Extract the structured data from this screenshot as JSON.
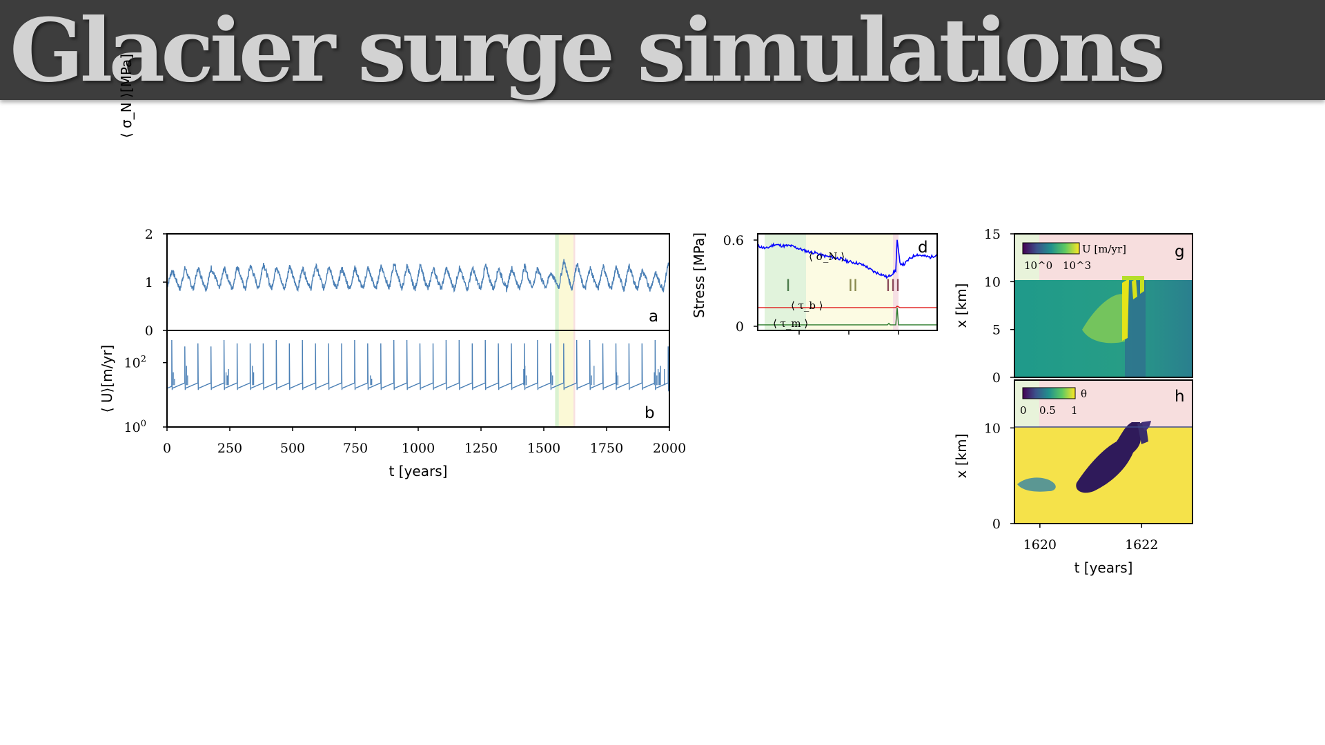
{
  "title": "Glacier surge simulations",
  "chart_data": [
    {
      "panel": "a",
      "type": "line",
      "ylabel": "⟨ σ_N ⟩[MPa]",
      "xlim": [
        0,
        2000
      ],
      "ylim": [
        0,
        2
      ],
      "yticks": [
        "0",
        "1",
        "2"
      ],
      "series_color": "#4a7fb5",
      "cycle_period_years": 52,
      "x": [
        0,
        20,
        40,
        52,
        72,
        92,
        104,
        124,
        144,
        156,
        176,
        196,
        208,
        228,
        248,
        260,
        280,
        300,
        312,
        332,
        352,
        364,
        384,
        404,
        416,
        436,
        456,
        468,
        488,
        508,
        520,
        540,
        560,
        572,
        592,
        612,
        624,
        644,
        664,
        676,
        696,
        716,
        728,
        748,
        768,
        780,
        800,
        820,
        832,
        852,
        872,
        884,
        904,
        924,
        936,
        956,
        976,
        988,
        1008,
        1028,
        1040,
        1060,
        1080,
        1092,
        1112,
        1132,
        1144,
        1164,
        1184,
        1196,
        1216,
        1236,
        1248,
        1268,
        1288,
        1300,
        1320,
        1340,
        1352,
        1372,
        1392,
        1404,
        1424,
        1444,
        1456,
        1476,
        1496,
        1508,
        1528,
        1548,
        1560,
        1580,
        1600,
        1612,
        1632,
        1652,
        1664,
        1684,
        1704,
        1716,
        1736,
        1756,
        1768,
        1788,
        1808,
        1820,
        1840,
        1860,
        1872,
        1892,
        1912,
        1924,
        1944,
        1964,
        1976,
        1996,
        2000
      ],
      "values": [
        0.9,
        1.25,
        1.0,
        0.85,
        1.3,
        1.0,
        0.85,
        1.3,
        1.0,
        0.85,
        1.3,
        1.05,
        0.85,
        1.3,
        1.0,
        0.85,
        1.35,
        1.0,
        0.85,
        1.35,
        1.05,
        0.85,
        1.4,
        1.05,
        0.85,
        1.35,
        1.0,
        0.85,
        1.35,
        1.0,
        0.85,
        1.3,
        1.0,
        0.85,
        1.35,
        1.05,
        0.85,
        1.35,
        1.0,
        0.85,
        1.3,
        1.0,
        0.85,
        1.3,
        1.0,
        0.85,
        1.3,
        1.0,
        0.85,
        1.35,
        1.05,
        0.85,
        1.4,
        1.05,
        0.85,
        1.35,
        1.0,
        0.85,
        1.35,
        1.0,
        0.85,
        1.3,
        1.0,
        0.85,
        1.3,
        1.0,
        0.85,
        1.3,
        1.0,
        0.85,
        1.3,
        1.0,
        0.85,
        1.35,
        1.0,
        0.85,
        1.3,
        1.0,
        0.85,
        1.3,
        1.0,
        0.85,
        1.35,
        1.0,
        0.9,
        1.3,
        1.0,
        0.9,
        1.2,
        1.0,
        0.9,
        1.45,
        1.05,
        0.85,
        1.4,
        1.0,
        0.85,
        1.3,
        1.0,
        0.85,
        1.35,
        1.0,
        0.85,
        1.3,
        1.0,
        0.85,
        1.35,
        1.0,
        0.85,
        1.25,
        1.0,
        0.85,
        1.2,
        0.95,
        0.85,
        1.4,
        1.35
      ],
      "shaded_regions": [
        {
          "x": [
            1545,
            1560
          ],
          "color": "#d9f2d0"
        },
        {
          "x": [
            1560,
            1618
          ],
          "color": "#fbf9d6"
        },
        {
          "x": [
            1618,
            1625
          ],
          "color": "#f8e0e0"
        }
      ]
    },
    {
      "panel": "b",
      "type": "line",
      "yscale": "log",
      "xlabel": "t [years]",
      "ylabel": "⟨ U⟩[m/yr]",
      "xlim": [
        0,
        2000
      ],
      "ylim_log10": [
        0,
        3
      ],
      "yticks": [
        "10^0",
        "10^2"
      ],
      "xticks": [
        "0",
        "250",
        "500",
        "750",
        "1000",
        "1250",
        "1500",
        "1750",
        "2000"
      ],
      "series_color": "#4a7fb5",
      "baseline_log10": 1.2,
      "quiescent_rise_log10": 0.35,
      "surge_times": [
        19,
        71,
        123,
        175,
        227,
        279,
        331,
        383,
        435,
        487,
        539,
        591,
        643,
        695,
        747,
        799,
        851,
        903,
        955,
        1007,
        1059,
        1111,
        1163,
        1215,
        1267,
        1319,
        1371,
        1423,
        1475,
        1527,
        1579,
        1631,
        1683,
        1735,
        1787,
        1839,
        1891,
        1943,
        1995
      ],
      "surge_peaks_log10": [
        2.7,
        2.5,
        2.6,
        2.5,
        2.7,
        2.6,
        2.6,
        2.6,
        2.7,
        2.6,
        2.7,
        2.6,
        2.6,
        2.6,
        2.7,
        2.6,
        2.6,
        2.7,
        2.7,
        2.6,
        2.6,
        2.7,
        2.7,
        2.6,
        2.7,
        2.6,
        2.6,
        2.6,
        2.7,
        2.6,
        2.6,
        2.7,
        2.7,
        2.6,
        2.6,
        2.6,
        2.6,
        2.7,
        2.5
      ],
      "minor_spike_times": [
        25,
        30,
        78,
        82,
        235,
        240,
        245,
        340,
        345,
        810,
        815,
        1420,
        1425,
        1430,
        1530,
        1535,
        1690,
        1700,
        1790,
        1795,
        1940,
        1950,
        1955,
        1960,
        1965,
        1980
      ],
      "minor_spike_peaks_log10": [
        1.7,
        1.5,
        1.9,
        1.6,
        1.7,
        1.6,
        1.8,
        1.9,
        1.7,
        1.6,
        1.5,
        1.8,
        1.9,
        1.6,
        1.7,
        1.6,
        1.6,
        1.9,
        1.7,
        1.6,
        1.7,
        1.6,
        1.8,
        1.7,
        1.9,
        1.8
      ]
    },
    {
      "panel": "d",
      "type": "line",
      "ylabel": "Stress [MPa]",
      "ylim": [
        0,
        0.6
      ],
      "yticks": [
        "0",
        "0.6"
      ],
      "x_range": [
        1610,
        1623
      ],
      "series": [
        {
          "name": "⟨ σ_N ⟩",
          "color": "#0000ff",
          "x": [
            1610,
            1610.6,
            1611.2,
            1611.8,
            1612.4,
            1613.0,
            1613.6,
            1614.2,
            1614.8,
            1615.4,
            1616.0,
            1616.6,
            1617.2,
            1617.8,
            1618.4,
            1619.0,
            1619.4,
            1619.8,
            1620.0,
            1620.1,
            1620.3,
            1620.6,
            1621.0,
            1621.5,
            1622.0,
            1622.5,
            1623.0
          ],
          "values": [
            0.56,
            0.54,
            0.57,
            0.56,
            0.56,
            0.54,
            0.52,
            0.51,
            0.49,
            0.48,
            0.47,
            0.45,
            0.44,
            0.42,
            0.38,
            0.36,
            0.34,
            0.37,
            0.39,
            0.6,
            0.44,
            0.43,
            0.47,
            0.5,
            0.49,
            0.48,
            0.5
          ]
        },
        {
          "name": "⟨ τ_b ⟩",
          "color": "#e02020",
          "x": [
            1610,
            1619.5,
            1620.0,
            1620.1,
            1620.3,
            1623.0
          ],
          "values": [
            0.13,
            0.13,
            0.13,
            0.14,
            0.13,
            0.13
          ]
        },
        {
          "name": "⟨ τ_m ⟩",
          "color": "#2a7a2a",
          "x": [
            1610,
            1619.4,
            1619.5,
            1619.6,
            1620.0,
            1620.1,
            1620.2,
            1623.0
          ],
          "values": [
            0.01,
            0.01,
            0.02,
            0.01,
            0.01,
            0.13,
            0.01,
            0.01
          ]
        }
      ],
      "phases": [
        {
          "label": "I",
          "x": [
            1610.5,
            1613.5
          ],
          "color": "#e1f3dc"
        },
        {
          "label": "II",
          "x": [
            1613.5,
            1619.8
          ],
          "color": "#fcfbe3"
        },
        {
          "label": "III",
          "x": [
            1619.8,
            1620.2
          ],
          "color": "#f6dfe4"
        }
      ]
    },
    {
      "panel": "g",
      "type": "heatmap",
      "ylabel": "x [km]",
      "ylim": [
        0,
        15
      ],
      "yticks": [
        "0",
        "5",
        "10",
        "15"
      ],
      "colorbar_label": "U [m/yr]",
      "colorbar_ticks": [
        "10^0",
        "10^3"
      ],
      "colormap": "viridis"
    },
    {
      "panel": "h",
      "type": "heatmap",
      "xlabel": "t [years]",
      "ylabel": "x [km]",
      "xlim": [
        1619.5,
        1623
      ],
      "xticks": [
        "1620",
        "1622"
      ],
      "yticks": [
        "0",
        "10"
      ],
      "colorbar_label": "θ",
      "colorbar_ticks": [
        "0",
        "0.5",
        "1"
      ],
      "colormap": "viridis"
    }
  ]
}
